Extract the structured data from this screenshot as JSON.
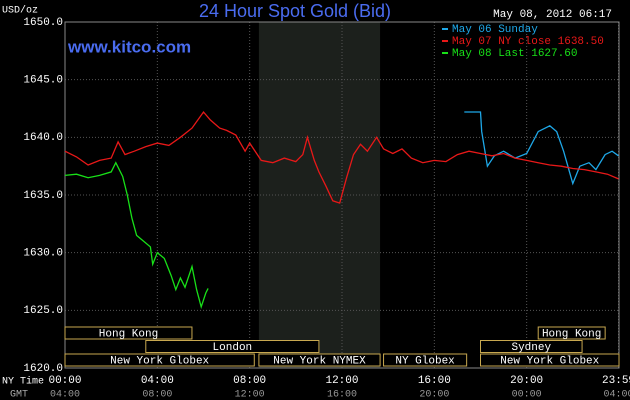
{
  "chart_data": {
    "type": "line",
    "title": "24 Hour Spot Gold (Bid)",
    "timestamp": "May 08, 2012 06:17",
    "site": "www.kitco.com",
    "ylabel": "USD/oz",
    "xlabel": "NY Time",
    "x2label": "GMT",
    "xlim": [
      0,
      24
    ],
    "ylim": [
      1620,
      1650
    ],
    "yticks": [
      {
        "value": 1620,
        "label": "1620.0"
      },
      {
        "value": 1625,
        "label": "1625.0"
      },
      {
        "value": 1630,
        "label": "1630.0"
      },
      {
        "value": 1635,
        "label": "1635.0"
      },
      {
        "value": 1640,
        "label": "1640.0"
      },
      {
        "value": 1645,
        "label": "1645.0"
      },
      {
        "value": 1650,
        "label": "1650.0"
      }
    ],
    "xticks": [
      {
        "value": 0,
        "label": "00:00"
      },
      {
        "value": 4,
        "label": "04:00"
      },
      {
        "value": 8,
        "label": "08:00"
      },
      {
        "value": 12,
        "label": "12:00"
      },
      {
        "value": 16,
        "label": "16:00"
      },
      {
        "value": 20,
        "label": "20:00"
      },
      {
        "value": 23.98,
        "label": "23:59"
      }
    ],
    "x2ticks": [
      "04:00",
      "08:00",
      "12:00",
      "16:00",
      "20:00",
      "00:00",
      "04:00"
    ],
    "grid": true,
    "shaded": [
      8.4,
      13.65
    ],
    "session_rows": [
      [
        {
          "label": "Hong Kong",
          "start": 0,
          "end": 5.5
        },
        {
          "label": "Hong Kong",
          "start": 20.5,
          "end": 23.4
        }
      ],
      [
        {
          "label": "London",
          "start": 3.5,
          "end": 11.0
        },
        {
          "label": "Sydney",
          "start": 18.0,
          "end": 22.4
        }
      ],
      [
        {
          "label": "New York Globex",
          "start": 0,
          "end": 8.2
        },
        {
          "label": "New York NYMEX",
          "start": 8.4,
          "end": 13.65
        },
        {
          "label": "NY Globex",
          "start": 13.8,
          "end": 17.4
        },
        {
          "label": "New York Globex",
          "start": 18.0,
          "end": 24
        }
      ]
    ],
    "series": [
      {
        "name": "May 06 Sunday",
        "color": "#1ea8e8",
        "x": [
          17.3,
          18.0,
          18.05,
          18.3,
          18.6,
          19,
          19.5,
          20,
          20.5,
          21,
          21.3,
          21.6,
          22,
          22.3,
          22.7,
          23,
          23.4,
          23.7,
          23.98
        ],
        "values": [
          1642.2,
          1642.2,
          1640.5,
          1637.5,
          1638.4,
          1638.8,
          1638.2,
          1638.6,
          1640.5,
          1641.0,
          1640.5,
          1638.8,
          1636.0,
          1637.5,
          1637.8,
          1637.2,
          1638.5,
          1638.8,
          1638.4
        ]
      },
      {
        "name": "May 07 NY close 1638.50",
        "color": "#e81818",
        "x": [
          0,
          0.5,
          1,
          1.5,
          2,
          2.3,
          2.6,
          3,
          3.5,
          4,
          4.5,
          5,
          5.5,
          6,
          6.3,
          6.7,
          7,
          7.4,
          7.8,
          8,
          8.5,
          9,
          9.5,
          10,
          10.3,
          10.5,
          10.8,
          11,
          11.3,
          11.6,
          11.9,
          12.2,
          12.5,
          12.8,
          13.1,
          13.5,
          13.8,
          14.2,
          14.6,
          15,
          15.5,
          16,
          16.5,
          17,
          17.5,
          18,
          18.5,
          19,
          19.5,
          20,
          20.5,
          21,
          21.5,
          22,
          22.5,
          23,
          23.5,
          23.98
        ],
        "values": [
          1638.8,
          1638.3,
          1637.6,
          1638.0,
          1638.2,
          1639.6,
          1638.5,
          1638.8,
          1639.2,
          1639.5,
          1639.3,
          1640.0,
          1640.8,
          1642.2,
          1641.5,
          1640.8,
          1640.6,
          1640.2,
          1638.8,
          1639.5,
          1638.0,
          1637.8,
          1638.2,
          1637.9,
          1638.5,
          1640.0,
          1638.0,
          1637.0,
          1635.8,
          1634.5,
          1634.3,
          1636.5,
          1638.5,
          1639.4,
          1638.8,
          1640.0,
          1639.0,
          1638.6,
          1639.0,
          1638.2,
          1637.8,
          1638.0,
          1637.9,
          1638.5,
          1638.8,
          1638.6,
          1638.4,
          1638.6,
          1638.2,
          1638.0,
          1637.8,
          1637.6,
          1637.5,
          1637.3,
          1637.2,
          1637.0,
          1636.8,
          1636.4
        ]
      },
      {
        "name": "May 08 Last 1627.60",
        "color": "#18e018",
        "x": [
          0,
          0.5,
          1,
          1.5,
          2,
          2.2,
          2.5,
          2.7,
          2.9,
          3.1,
          3.4,
          3.7,
          3.8,
          4.0,
          4.3,
          4.6,
          4.8,
          5.0,
          5.2,
          5.5,
          5.7,
          5.9,
          6.1,
          6.2
        ],
        "values": [
          1636.7,
          1636.8,
          1636.5,
          1636.7,
          1637.0,
          1637.8,
          1636.6,
          1635.0,
          1633.0,
          1631.5,
          1631.0,
          1630.5,
          1629.0,
          1630.0,
          1629.5,
          1628.0,
          1626.8,
          1627.8,
          1627.0,
          1628.8,
          1626.8,
          1625.3,
          1626.5,
          1626.9
        ]
      }
    ]
  }
}
